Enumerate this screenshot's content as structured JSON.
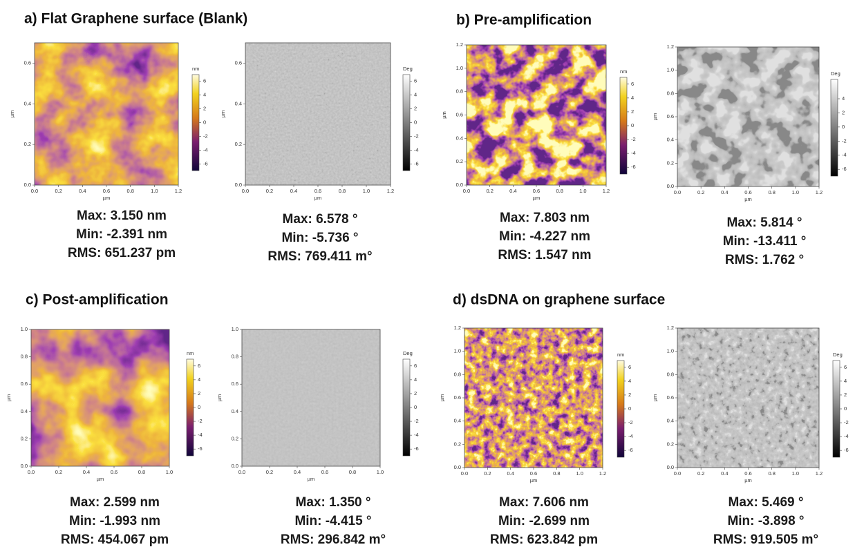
{
  "panels": [
    {
      "title": "a) Flat Graphene surface (Blank)",
      "images": [
        {
          "axis_unit": "µm",
          "xticks": [
            "0.0",
            "0.2",
            "0.4",
            "0.6",
            "0.8",
            "1.0",
            "1.2"
          ],
          "yticks": [
            "0.0",
            "0.2",
            "0.4",
            "0.6"
          ],
          "colorbar_unit": "nm",
          "colorbar_ticks": [
            "6",
            "4",
            "2",
            "0",
            "-2",
            "-4",
            "-6"
          ],
          "stats": [
            "Max: 3.150 nm",
            "Min: -2.391 nm",
            "RMS: 651.237 pm"
          ]
        },
        {
          "axis_unit": "µm",
          "xticks": [
            "0.0",
            "0.2",
            "0.4",
            "0.6",
            "0.8",
            "1.0",
            "1.2"
          ],
          "yticks": [
            "0.0",
            "0.2",
            "0.4",
            "0.6"
          ],
          "colorbar_unit": "Deg",
          "colorbar_ticks": [
            "6",
            "4",
            "2",
            "0",
            "-2",
            "-4",
            "-6"
          ],
          "stats": [
            "Max: 6.578 °",
            "Min: -5.736 °",
            "RMS: 769.411 m°"
          ]
        }
      ]
    },
    {
      "title": "b) Pre-amplification",
      "images": [
        {
          "axis_unit": "µm",
          "xticks": [
            "0.0",
            "0.2",
            "0.4",
            "0.6",
            "0.8",
            "1.0",
            "1.2"
          ],
          "yticks": [
            "0.0",
            "0.2",
            "0.4",
            "0.6",
            "0.8",
            "1.0",
            "1.2"
          ],
          "colorbar_unit": "nm",
          "colorbar_ticks": [
            "6",
            "4",
            "2",
            "0",
            "-2",
            "-4",
            "-6"
          ],
          "stats": [
            "Max: 7.803 nm",
            "Min: -4.227 nm",
            "RMS: 1.547 nm"
          ]
        },
        {
          "axis_unit": "µm",
          "xticks": [
            "0.0",
            "0.2",
            "0.4",
            "0.6",
            "0.8",
            "1.0",
            "1.2"
          ],
          "yticks": [
            "0.0",
            "0.2",
            "0.4",
            "0.6",
            "0.8",
            "1.0",
            "1.2"
          ],
          "colorbar_unit": "Deg",
          "colorbar_ticks": [
            "4",
            "2",
            "0",
            "-2",
            "-4",
            "-6"
          ],
          "stats": [
            "Max: 5.814 °",
            "Min: -13.411 °",
            "RMS: 1.762 °"
          ]
        }
      ]
    },
    {
      "title": "c) Post-amplification",
      "images": [
        {
          "axis_unit": "µm",
          "xticks": [
            "0.0",
            "0.2",
            "0.4",
            "0.6",
            "0.8",
            "1.0"
          ],
          "yticks": [
            "0.0",
            "0.2",
            "0.4",
            "0.6",
            "0.8",
            "1.0"
          ],
          "colorbar_unit": "nm",
          "colorbar_ticks": [
            "6",
            "4",
            "2",
            "0",
            "-2",
            "-4",
            "-6"
          ],
          "stats": [
            "Max: 2.599 nm",
            "Min: -1.993 nm",
            "RMS: 454.067 pm"
          ]
        },
        {
          "axis_unit": "µm",
          "xticks": [
            "0.0",
            "0.2",
            "0.4",
            "0.6",
            "0.8",
            "1.0"
          ],
          "yticks": [
            "0.0",
            "0.2",
            "0.4",
            "0.6",
            "0.8",
            "1.0"
          ],
          "colorbar_unit": "Deg",
          "colorbar_ticks": [
            "6",
            "4",
            "2",
            "0",
            "-2",
            "-4",
            "-6"
          ],
          "stats": [
            "Max: 1.350 °",
            "Min: -4.415 °",
            "RMS: 296.842 m°"
          ]
        }
      ]
    },
    {
      "title": "d) dsDNA on graphene surface",
      "images": [
        {
          "axis_unit": "µm",
          "xticks": [
            "0.0",
            "0.2",
            "0.4",
            "0.6",
            "0.8",
            "1.0",
            "1.2"
          ],
          "yticks": [
            "0.0",
            "0.2",
            "0.4",
            "0.6",
            "0.8",
            "1.0",
            "1.2"
          ],
          "colorbar_unit": "nm",
          "colorbar_ticks": [
            "6",
            "4",
            "2",
            "0",
            "-2",
            "-4",
            "-6"
          ],
          "stats": [
            "Max: 7.606 nm",
            "Min: -2.699 nm",
            "RMS: 623.842 pm"
          ]
        },
        {
          "axis_unit": "µm",
          "xticks": [
            "0.0",
            "0.2",
            "0.4",
            "0.6",
            "0.8",
            "1.0",
            "1.2"
          ],
          "yticks": [
            "0.0",
            "0.2",
            "0.4",
            "0.6",
            "0.8",
            "1.0",
            "1.2"
          ],
          "colorbar_unit": "Deg",
          "colorbar_ticks": [
            "6",
            "4",
            "2",
            "0",
            "-2",
            "-4",
            "-6"
          ],
          "stats": [
            "Max: 5.469 °",
            "Min: -3.898 °",
            "RMS: 919.505 m°"
          ]
        }
      ]
    }
  ]
}
